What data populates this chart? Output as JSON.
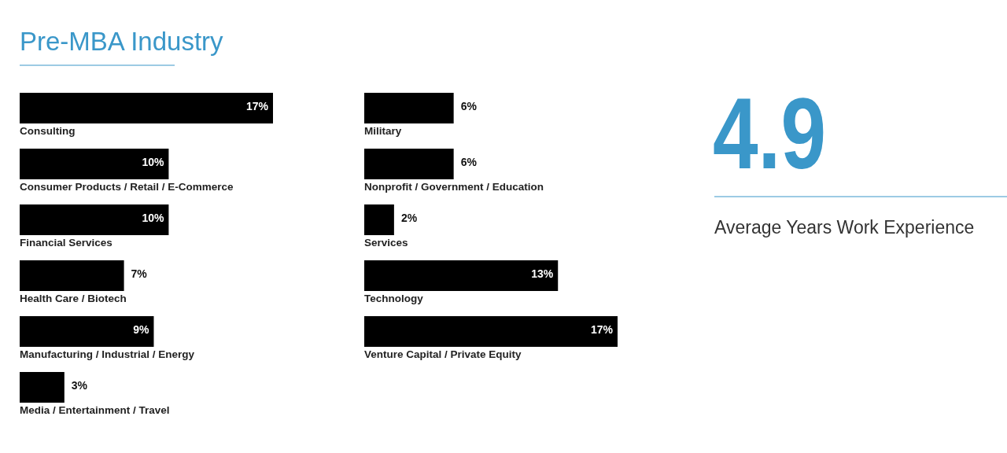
{
  "chart_data": [
    {
      "type": "bar",
      "title": "Pre-MBA Industry",
      "orientation": "horizontal",
      "categories": [
        "Consulting",
        "Consumer Products / Retail / E-Commerce",
        "Financial Services",
        "Health Care / Biotech",
        "Manufacturing / Industrial / Energy",
        "Media / Entertainment / Travel"
      ],
      "values": [
        17,
        10,
        10,
        7,
        9,
        3
      ],
      "value_labels": [
        "17%",
        "10%",
        "10%",
        "7%",
        "9%",
        "3%"
      ],
      "color": "#000000",
      "tick_labels": false
    },
    {
      "type": "bar",
      "orientation": "horizontal",
      "categories": [
        "Military",
        "Nonprofit / Government / Education",
        "Services",
        "Technology",
        "Venture Capital / Private Equity"
      ],
      "values": [
        6,
        6,
        2,
        13,
        17
      ],
      "value_labels": [
        "6%",
        "6%",
        "2%",
        "13%",
        "17%"
      ],
      "color": "#000000",
      "tick_labels": false
    },
    {
      "type": "other",
      "annotations": [
        "4.9",
        "Average Years Work Experience"
      ]
    }
  ]
}
